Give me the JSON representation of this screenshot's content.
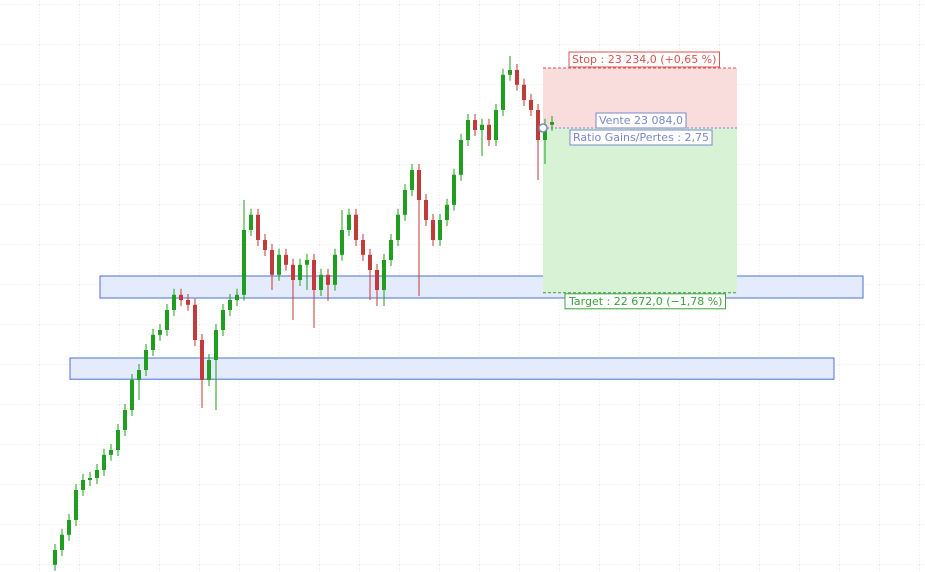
{
  "chart_data": {
    "type": "candlestick",
    "ylim": [
      21974,
      23404
    ],
    "grid": true,
    "up_color": "#1f9e1f",
    "down_color": "#c23a3a",
    "open": [
      21992,
      22029,
      22067,
      22104,
      22179,
      22204,
      22209,
      22229,
      22267,
      22279,
      22329,
      22379,
      22454,
      22479,
      22529,
      22567,
      22579,
      22629,
      22667,
      22654,
      22642,
      22554,
      22454,
      22504,
      22579,
      22629,
      22654,
      22667,
      22829,
      22867,
      22804,
      22779,
      22717,
      22767,
      22742,
      22704,
      22742,
      22754,
      22679,
      22717,
      22692,
      22767,
      22829,
      22867,
      22804,
      22767,
      22729,
      22679,
      22754,
      22804,
      22867,
      22929,
      22979,
      22904,
      22854,
      22804,
      22854,
      22892,
      22967,
      23054,
      23104,
      23079,
      23092,
      23054,
      23129,
      23217,
      23229,
      23192,
      23154,
      23129,
      23054,
      23092
    ],
    "high": [
      22044,
      22082,
      22119,
      22194,
      22219,
      22224,
      22244,
      22282,
      22294,
      22344,
      22394,
      22469,
      22494,
      22544,
      22582,
      22594,
      22644,
      22682,
      22682,
      22669,
      22657,
      22569,
      22519,
      22594,
      22644,
      22669,
      22682,
      22904,
      22882,
      22882,
      22819,
      22794,
      22782,
      22782,
      22757,
      22757,
      22769,
      22769,
      22732,
      22732,
      22782,
      22879,
      22882,
      22882,
      22819,
      22782,
      22744,
      22769,
      22819,
      22882,
      22944,
      22994,
      22994,
      22919,
      22869,
      22869,
      22907,
      22982,
      23069,
      23119,
      23119,
      23107,
      23107,
      23144,
      23232,
      23264,
      23244,
      23207,
      23169,
      23144,
      23107,
      23114
    ],
    "low": [
      21977,
      22014,
      22052,
      22089,
      22164,
      22189,
      22194,
      22214,
      22252,
      22264,
      22314,
      22364,
      22404,
      22464,
      22514,
      22552,
      22564,
      22614,
      22639,
      22627,
      22539,
      22384,
      22439,
      22379,
      22564,
      22614,
      22639,
      22652,
      22814,
      22789,
      22764,
      22679,
      22702,
      22727,
      22604,
      22689,
      22679,
      22584,
      22664,
      22652,
      22677,
      22752,
      22814,
      22789,
      22752,
      22654,
      22639,
      22639,
      22739,
      22789,
      22852,
      22914,
      22664,
      22839,
      22789,
      22789,
      22839,
      22877,
      22952,
      23039,
      23064,
      23014,
      23039,
      23039,
      23114,
      23202,
      23177,
      23139,
      23114,
      22954,
      22994,
      23077
    ],
    "close": [
      22029,
      22067,
      22104,
      22179,
      22204,
      22209,
      22229,
      22267,
      22279,
      22329,
      22379,
      22454,
      22479,
      22529,
      22567,
      22579,
      22629,
      22667,
      22654,
      22642,
      22554,
      22454,
      22504,
      22579,
      22629,
      22654,
      22667,
      22829,
      22867,
      22804,
      22779,
      22717,
      22767,
      22742,
      22704,
      22742,
      22754,
      22679,
      22717,
      22692,
      22767,
      22829,
      22867,
      22804,
      22767,
      22729,
      22679,
      22754,
      22804,
      22867,
      22929,
      22979,
      22904,
      22854,
      22804,
      22854,
      22892,
      22967,
      23054,
      23104,
      23079,
      23092,
      23054,
      23129,
      23217,
      23229,
      23192,
      23154,
      23129,
      23054,
      23092,
      23099
    ],
    "zones": [
      {
        "high": 22714,
        "low": 22659,
        "color": "#dfe7fb"
      },
      {
        "high": 22509,
        "low": 22456,
        "color": "#dfe7fb"
      }
    ],
    "trade": {
      "entry": 23084,
      "stop": 23234,
      "target": 22672,
      "stop_label": "Stop : 23 234,0 (+0,65 %)",
      "entry_label": "Vente 23 084,0",
      "ratio_label": "Ratio Gains/Pertes : 2,75",
      "target_label": "Target : 22 672,0 (−1,78 %)",
      "stop_color": "#d9534f",
      "entry_color": "#7a88c8",
      "target_color": "#3aa23a"
    }
  }
}
